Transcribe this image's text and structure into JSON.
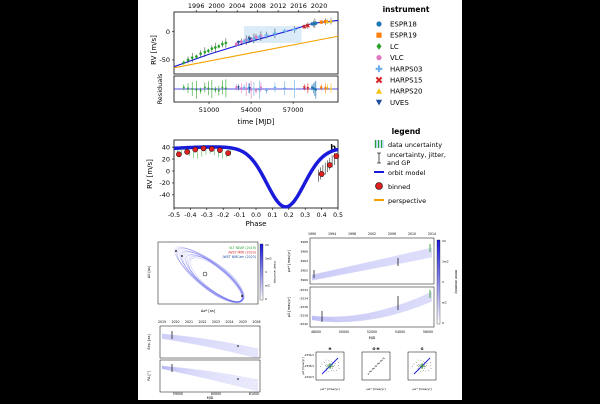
{
  "figure": {
    "panel_b_tag": "b",
    "legend_title": "instrument",
    "instruments": [
      {
        "name": "ESPR18",
        "color": "#1f77b4",
        "marker": "circle"
      },
      {
        "name": "ESPR19",
        "color": "#ff7f0e",
        "marker": "square"
      },
      {
        "name": "LC",
        "color": "#2ca02c",
        "marker": "diamond"
      },
      {
        "name": "VLC",
        "color": "#e377c2",
        "marker": "circle"
      },
      {
        "name": "HARPS03",
        "color": "#6aaee8",
        "marker": "plus"
      },
      {
        "name": "HARPS15",
        "color": "#d62728",
        "marker": "cross"
      },
      {
        "name": "HARPS20",
        "color": "#f2c21b",
        "marker": "triangle-up"
      },
      {
        "name": "UVES",
        "color": "#1f4e9c",
        "marker": "triangle-down"
      }
    ],
    "legend2_title": "legend",
    "legend2": [
      {
        "label": "data uncertainty",
        "icon": "striped-bar-icon"
      },
      {
        "label": "uncertainty, jitter, and GP",
        "icon": "errorbar-icon"
      },
      {
        "label": "orbit model",
        "icon": "blue-line-icon",
        "color": "#1a1adb"
      },
      {
        "label": "binned",
        "icon": "red-dot-icon",
        "color": "#e02020"
      },
      {
        "label": "perspective",
        "icon": "orange-line-icon",
        "color": "#f5a300"
      }
    ]
  },
  "chart_data": [
    {
      "type": "scatter",
      "title": "",
      "ylabel": "RV [m/s]",
      "xlabel": "time [MJD]",
      "top_axis_ticks": [
        "1996",
        "2000",
        "2004",
        "2008",
        "2012",
        "2016",
        "2020"
      ],
      "top_axis_values": [
        50083,
        51544,
        53005,
        54466,
        55927,
        57388,
        58849
      ],
      "xlim": [
        48500,
        60200
      ],
      "x_ticks": [
        51000,
        54000,
        57000
      ],
      "x_tick_labels": [
        "51000",
        "54000",
        "57000"
      ],
      "ylim": [
        -75,
        35
      ],
      "y_ticks": [
        0,
        -50
      ],
      "y_tick_labels": [
        "0",
        "-50"
      ],
      "orbit_model": [
        [
          48500,
          -62
        ],
        [
          51000,
          -40
        ],
        [
          54000,
          -17
        ],
        [
          57000,
          4
        ],
        [
          58400,
          15
        ],
        [
          60200,
          20
        ]
      ],
      "perspective": [
        [
          48500,
          -64
        ],
        [
          60200,
          -8
        ]
      ],
      "series": [
        {
          "name": "LC",
          "x": [
            49200,
            49500,
            49800,
            50100,
            50400,
            50700,
            50950,
            51200,
            51450,
            51700,
            51950,
            52200
          ],
          "y": [
            -55,
            -50,
            -46,
            -44,
            -39,
            -36,
            -34,
            -30,
            -28,
            -26,
            -22,
            -20
          ]
        },
        {
          "name": "VLC",
          "x": [
            52950,
            53300,
            53650,
            54000,
            54350,
            54700
          ],
          "y": [
            -22,
            -18,
            -15,
            -13,
            -10,
            -8
          ]
        },
        {
          "name": "HARPS03",
          "x": [
            53500,
            53800,
            54200,
            54600,
            55100,
            55700,
            56400,
            57100
          ],
          "y": [
            -17,
            -14,
            -12,
            -9,
            -6,
            -3,
            1,
            4
          ]
        },
        {
          "name": "UVES",
          "x": [
            53100,
            53900
          ],
          "y": [
            -19,
            -13
          ]
        },
        {
          "name": "ESPR18",
          "x": [
            58350,
            58450,
            58550,
            58620
          ],
          "y": [
            14,
            14,
            15,
            15
          ]
        },
        {
          "name": "HARPS15",
          "x": [
            57800,
            58050
          ],
          "y": [
            9,
            11
          ]
        },
        {
          "name": "ESPR19",
          "x": [
            59000,
            59300
          ],
          "y": [
            17,
            18
          ]
        },
        {
          "name": "HARPS20",
          "x": [
            59450,
            59700
          ],
          "y": [
            18,
            19
          ]
        }
      ]
    },
    {
      "type": "scatter",
      "ylabel": "Residuals",
      "xlim": [
        48500,
        60200
      ],
      "ylim": [
        -1,
        1
      ]
    },
    {
      "type": "line",
      "ylabel": "RV [m/s]",
      "xlabel": "Phase",
      "xlim": [
        -0.5,
        0.5
      ],
      "x_ticks": [
        -0.5,
        -0.4,
        -0.3,
        -0.2,
        -0.1,
        0.0,
        0.1,
        0.2,
        0.3,
        0.4,
        0.5
      ],
      "x_tick_labels": [
        "-0.5",
        "-0.4",
        "-0.3",
        "-0.2",
        "-0.1",
        "0.0",
        "0.1",
        "0.2",
        "0.3",
        "0.4",
        "0.5"
      ],
      "ylim": [
        -62,
        52
      ],
      "y_ticks": [
        40,
        20,
        0,
        -20,
        -40
      ],
      "y_tick_labels": [
        "40",
        "20",
        "0",
        "-20",
        "-40"
      ],
      "binned_phase": [
        -0.47,
        -0.42,
        -0.37,
        -0.32,
        -0.27,
        -0.22,
        -0.17,
        0.4,
        0.45,
        0.49
      ],
      "binned_rv": [
        28,
        32,
        36,
        38,
        37,
        35,
        30,
        -5,
        10,
        25
      ]
    },
    {
      "type": "scatter",
      "name": "astrometry-sky",
      "xlabel": "Δα* [as]",
      "ylabel": "Δδ [as]",
      "legend": [
        "VLT NEAR (2019)",
        "JWST MIRI (2023)",
        "JWST NIRCam (2023)"
      ],
      "legend_colors": [
        "#2ca02c",
        "#d62728",
        "#1f4e9c"
      ],
      "colorbar_label": "mean anomaly",
      "colorbar_ticks": [
        "2π",
        "3π/2",
        "π",
        "π/2",
        "0"
      ]
    },
    {
      "type": "line",
      "name": "sep-pa-time",
      "top_axis_ticks": [
        "2019",
        "2020",
        "2021",
        "2022",
        "2023",
        "2024",
        "2025",
        "2026"
      ],
      "xlabel": "MJD",
      "x_ticks": [
        "59000",
        "60000",
        "61000"
      ],
      "ylabels": [
        "Sep. [as]",
        "PA [°]"
      ]
    },
    {
      "type": "line",
      "name": "hipparcos-gaia-pm",
      "top_axis_ticks": [
        "1990",
        "1994",
        "1998",
        "2002",
        "2006",
        "2010",
        "2014"
      ],
      "xlabel": "MJD",
      "x_ticks": [
        "48000",
        "50000",
        "52000",
        "54000",
        "56000"
      ],
      "y_ticks_top": [
        "3968",
        "3966",
        "3964",
        "3962",
        "3960"
      ],
      "y_ticks_bottom": [
        "-2532",
        "-2534",
        "-2536",
        "-2538",
        "-2540"
      ],
      "ylabels": [
        "μα* [mas/yr]",
        "μδ [mas/yr]"
      ],
      "colorbar_label": "mean anomaly",
      "colorbar_ticks": [
        "2π",
        "3π/2",
        "π",
        "π/2",
        "0"
      ]
    },
    {
      "type": "scatter",
      "name": "pm-insets",
      "titles": [
        "H",
        "G-H",
        "G"
      ],
      "ylabel": "μδ [mas/yr]",
      "xlabel": "μα* [mas/yr]",
      "y_ticks": [
        "-2536.5",
        "-2538.5",
        "-2540.5"
      ]
    }
  ]
}
